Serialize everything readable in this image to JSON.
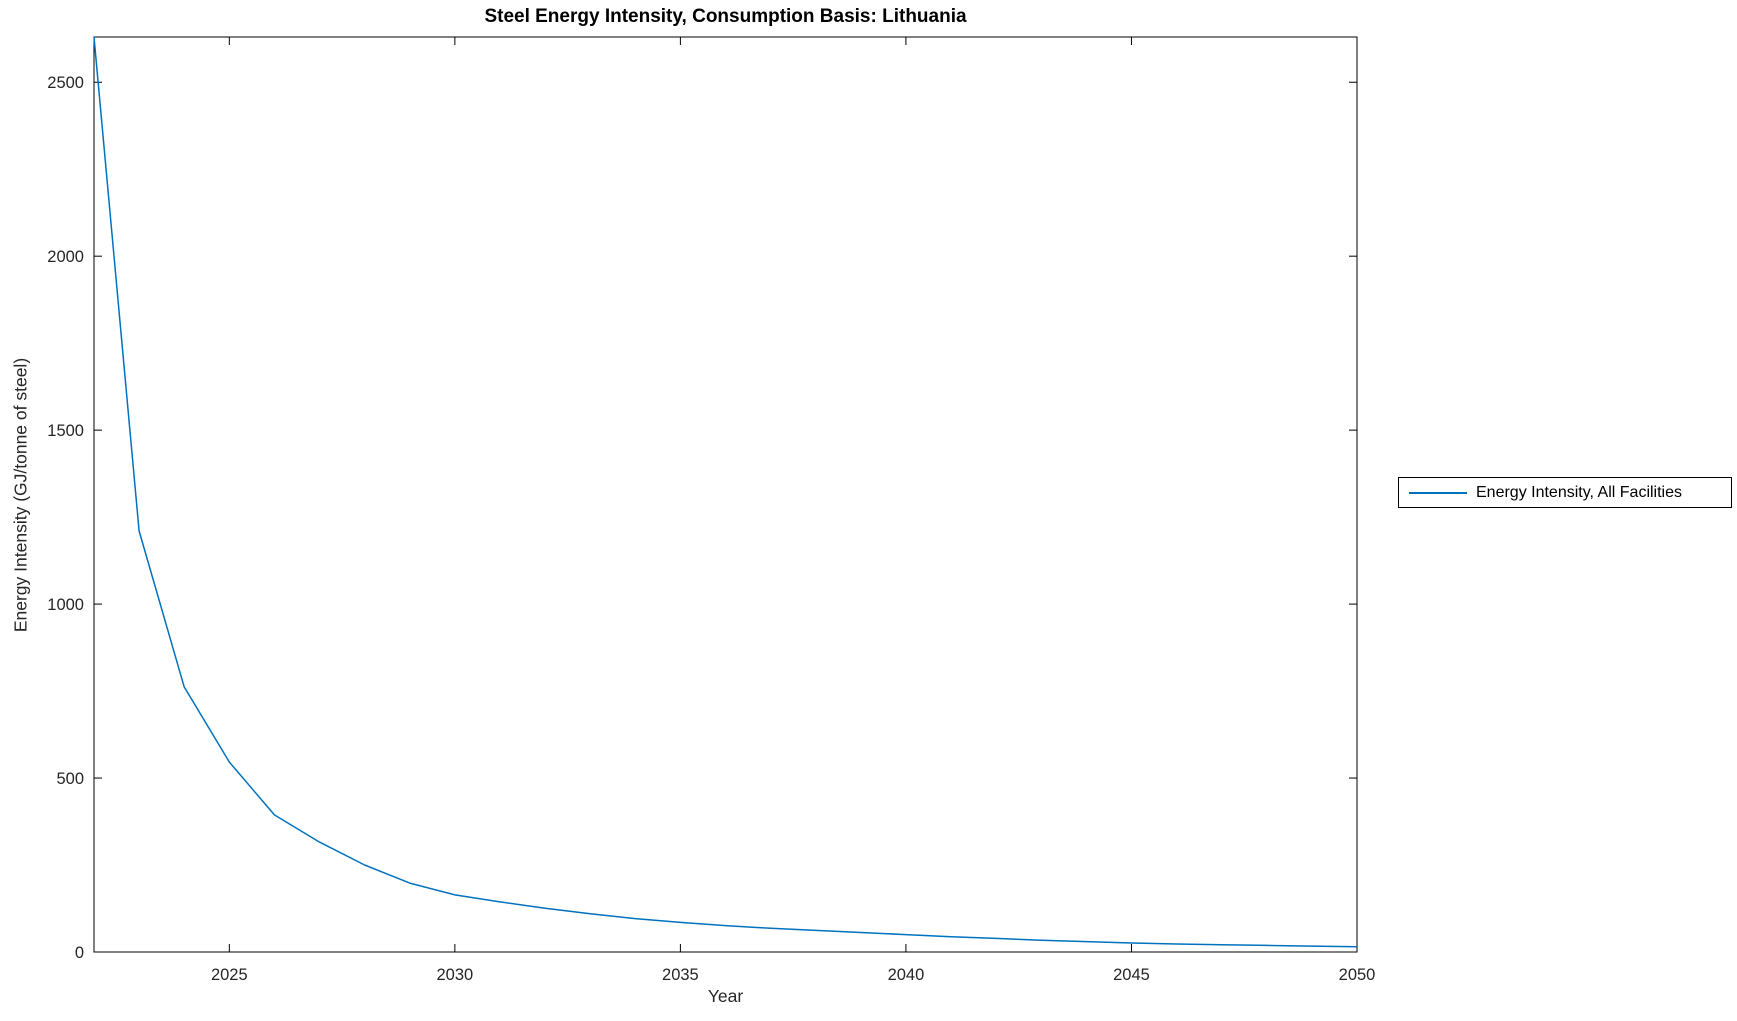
{
  "figure": {
    "title": "Steel Energy Intensity, Consumption Basis: Lithuania",
    "xlabel": "Year",
    "ylabel": "Energy Intensity (GJ/tonne of steel)",
    "legend": {
      "position": "right-outside",
      "items": [
        {
          "label": "Energy Intensity, All Facilities",
          "color": "#0072BD"
        }
      ]
    }
  },
  "chart_data": {
    "type": "line",
    "title": "Steel Energy Intensity, Consumption Basis: Lithuania",
    "xlabel": "Year",
    "ylabel": "Energy Intensity (GJ/tonne of steel)",
    "x": [
      2022,
      2023,
      2024,
      2025,
      2026,
      2027,
      2028,
      2029,
      2030,
      2031,
      2032,
      2033,
      2034,
      2035,
      2036,
      2037,
      2038,
      2039,
      2040,
      2041,
      2042,
      2043,
      2044,
      2045,
      2046,
      2047,
      2048,
      2049,
      2050
    ],
    "series": [
      {
        "name": "Energy Intensity, All Facilities",
        "color": "#0072BD",
        "values": [
          2630,
          1210,
          762,
          546,
          394,
          316,
          250,
          198,
          164,
          144,
          126,
          110,
          96,
          85,
          76,
          68,
          62,
          56,
          50,
          44,
          39,
          34,
          30,
          26,
          23,
          21,
          19,
          17,
          15
        ]
      }
    ],
    "xlim": [
      2022,
      2050
    ],
    "ylim": [
      0,
      2630
    ],
    "xticks": [
      2025,
      2030,
      2035,
      2040,
      2045,
      2050
    ],
    "yticks": [
      0,
      500,
      1000,
      1500,
      2000,
      2500
    ],
    "grid": false,
    "legend_position": "right-outside",
    "axis_color": "#000000",
    "tick_label_color": "#262626",
    "background": "#ffffff"
  }
}
